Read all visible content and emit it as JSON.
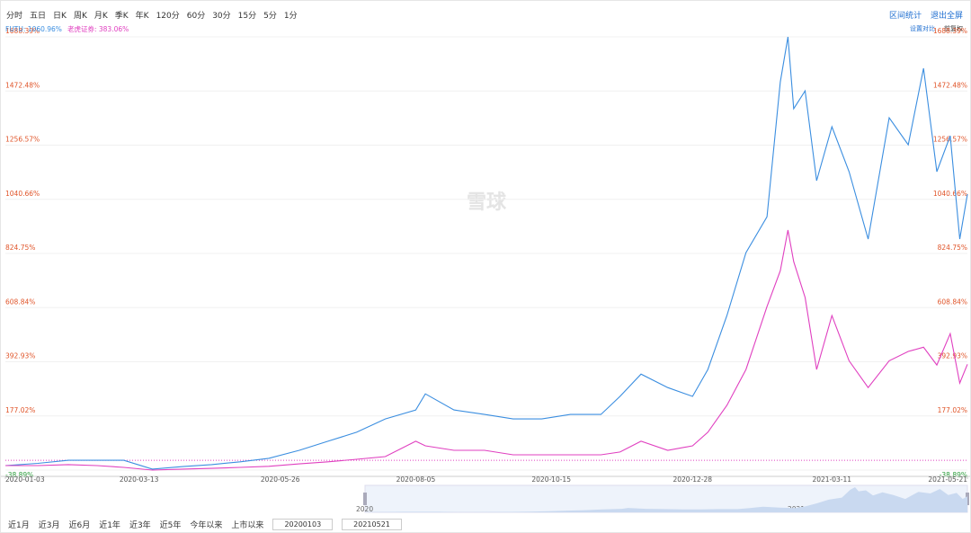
{
  "periods": [
    "分时",
    "五日",
    "日K",
    "周K",
    "月K",
    "季K",
    "年K",
    "120分",
    "60分",
    "30分",
    "15分",
    "5分",
    "1分"
  ],
  "tools": [
    "区间统计",
    "退出全屏"
  ],
  "options": [
    "设置对比",
    "前复权"
  ],
  "watermark": "雪球",
  "ranges": [
    "近1月",
    "近3月",
    "近6月",
    "近1年",
    "近3年",
    "近5年",
    "今年以来",
    "上市以来"
  ],
  "date_inputs": [
    "20200103",
    "20210521"
  ],
  "navigator_labels": [
    "2020",
    "2021"
  ],
  "chart_data": {
    "type": "line",
    "x": [
      "2020-01-03",
      "2020-01-20",
      "2020-02-05",
      "2020-02-20",
      "2020-03-05",
      "2020-03-20",
      "2020-04-05",
      "2020-04-20",
      "2020-05-05",
      "2020-05-20",
      "2020-06-05",
      "2020-06-20",
      "2020-07-05",
      "2020-07-20",
      "2020-08-05",
      "2020-08-10",
      "2020-08-25",
      "2020-09-10",
      "2020-09-25",
      "2020-10-10",
      "2020-10-25",
      "2020-11-10",
      "2020-11-20",
      "2020-12-01",
      "2020-12-15",
      "2020-12-28",
      "2021-01-05",
      "2021-01-15",
      "2021-01-25",
      "2021-02-05",
      "2021-02-12",
      "2021-02-16",
      "2021-02-19",
      "2021-02-25",
      "2021-03-03",
      "2021-03-11",
      "2021-03-20",
      "2021-03-30",
      "2021-04-10",
      "2021-04-20",
      "2021-04-28",
      "2021-05-05",
      "2021-05-12",
      "2021-05-17",
      "2021-05-21"
    ],
    "series": [
      {
        "name": "FUTU",
        "current_label": "1060.96%",
        "color": "#3b8ee0",
        "values": [
          -21,
          -12,
          0,
          0,
          0,
          -35,
          -25,
          -17,
          -6,
          8,
          40,
          76,
          112,
          165,
          201,
          265,
          201,
          183,
          165,
          165,
          183,
          183,
          255,
          344,
          290,
          255,
          362,
          577,
          828,
          971,
          1509,
          1688,
          1402,
          1473,
          1115,
          1330,
          1151,
          882,
          1366,
          1258,
          1563,
          1151,
          1294,
          882,
          1061
        ]
      },
      {
        "name": "老虎证券",
        "current_label": "383.06%",
        "color": "#e040c0",
        "values": [
          -21,
          -21,
          -17,
          -21,
          -28,
          -39,
          -35,
          -32,
          -28,
          -24,
          -14,
          -6,
          4,
          15,
          76,
          58,
          40,
          40,
          22,
          22,
          22,
          22,
          33,
          76,
          40,
          58,
          112,
          219,
          362,
          613,
          756,
          918,
          792,
          649,
          362,
          577,
          397,
          290,
          397,
          434,
          451,
          380,
          505,
          308,
          383
        ]
      }
    ],
    "xlim": [
      "2020-01-03",
      "2021-05-21"
    ],
    "xticks": [
      "2020-01-03",
      "2020-03-13",
      "2020-05-26",
      "2020-08-05",
      "2020-10-15",
      "2020-12-28",
      "2021-03-11",
      "2021-05-21"
    ],
    "ylim": [
      -38.89,
      1688.39
    ],
    "yticks": [
      {
        "value": -38.89,
        "label": "-38.89%"
      },
      {
        "value": 177.02,
        "label": "177.02%"
      },
      {
        "value": 392.93,
        "label": "392.93%"
      },
      {
        "value": 608.84,
        "label": "608.84%"
      },
      {
        "value": 824.75,
        "label": "824.75%"
      },
      {
        "value": 1040.66,
        "label": "1040.66%"
      },
      {
        "value": 1256.57,
        "label": "1256.57%"
      },
      {
        "value": 1472.48,
        "label": "1472.48%"
      },
      {
        "value": 1688.39,
        "label": "1688.39%"
      }
    ],
    "baseline": 0,
    "grid": true
  }
}
